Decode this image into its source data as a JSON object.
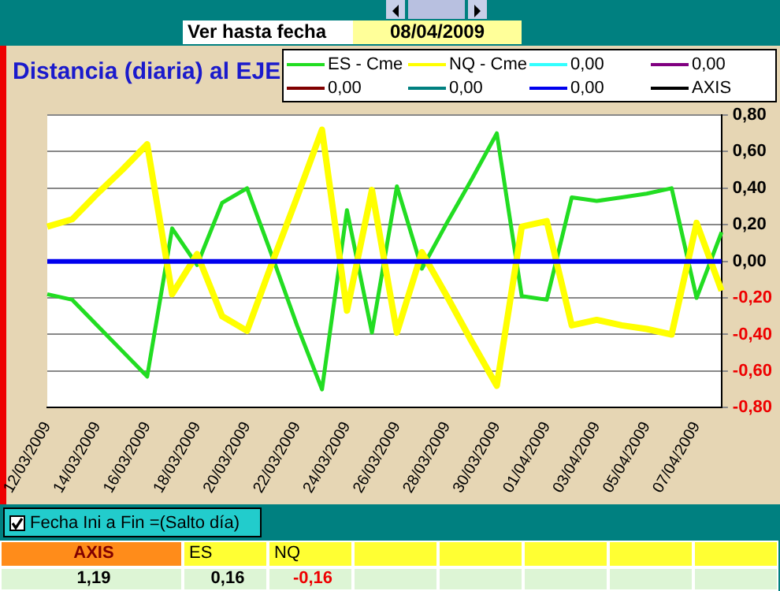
{
  "chart_data": {
    "type": "line",
    "title": "Distancia (diaria) al EJE",
    "categories": [
      "12/03/2009",
      null,
      "14/03/2009",
      null,
      "16/03/2009",
      null,
      "18/03/2009",
      null,
      "20/03/2009",
      null,
      "22/03/2009",
      null,
      "24/03/2009",
      null,
      "26/03/2009",
      null,
      "28/03/2009",
      null,
      "30/03/2009",
      null,
      "01/04/2009",
      null,
      "03/04/2009",
      null,
      "05/04/2009",
      null,
      "07/04/2009",
      null
    ],
    "series": [
      {
        "name": "ES - Cme",
        "color": "#22dd22",
        "values": [
          -0.18,
          -0.21,
          -0.35,
          -0.49,
          -0.63,
          0.18,
          -0.02,
          0.32,
          0.4,
          0.03,
          -0.35,
          -0.7,
          0.28,
          -0.39,
          0.41,
          -0.04,
          0.21,
          0.45,
          0.7,
          -0.19,
          -0.21,
          0.35,
          0.33,
          0.35,
          0.37,
          0.4,
          -0.2,
          0.16
        ]
      },
      {
        "name": "NQ - Cme",
        "color": "#ffff00",
        "values": [
          0.19,
          0.23,
          0.37,
          0.5,
          0.64,
          -0.18,
          0.04,
          -0.3,
          -0.38,
          -0.01,
          0.35,
          0.72,
          -0.27,
          0.39,
          -0.39,
          0.05,
          -0.19,
          -0.44,
          -0.68,
          0.19,
          0.22,
          -0.35,
          -0.32,
          -0.35,
          -0.37,
          -0.4,
          0.21,
          -0.16
        ]
      },
      {
        "name": "0,00",
        "color": "#33ffff",
        "values": [
          null,
          null,
          null,
          null,
          null,
          null,
          null,
          null,
          null,
          null,
          null,
          null,
          null,
          null,
          null,
          null,
          null,
          null,
          null,
          null,
          null,
          null,
          null,
          null,
          null,
          null,
          null,
          null
        ]
      },
      {
        "name": "0,00",
        "color": "#800080",
        "values": [
          null,
          null,
          null,
          null,
          null,
          null,
          null,
          null,
          null,
          null,
          null,
          null,
          null,
          null,
          null,
          null,
          null,
          null,
          null,
          null,
          null,
          null,
          null,
          null,
          null,
          null,
          null,
          null
        ]
      },
      {
        "name": "0,00",
        "color": "#800000",
        "values": [
          null,
          null,
          null,
          null,
          null,
          null,
          null,
          null,
          null,
          null,
          null,
          null,
          null,
          null,
          null,
          null,
          null,
          null,
          null,
          null,
          null,
          null,
          null,
          null,
          null,
          null,
          null,
          null
        ]
      },
      {
        "name": "0,00",
        "color": "#008080",
        "values": [
          null,
          null,
          null,
          null,
          null,
          null,
          null,
          null,
          null,
          null,
          null,
          null,
          null,
          null,
          null,
          null,
          null,
          null,
          null,
          null,
          null,
          null,
          null,
          null,
          null,
          null,
          null,
          null
        ]
      },
      {
        "name": "0,00",
        "color": "#0000ee",
        "values": [
          0,
          0,
          0,
          0,
          0,
          0,
          0,
          0,
          0,
          0,
          0,
          0,
          0,
          0,
          0,
          0,
          0,
          0,
          0,
          0,
          0,
          0,
          0,
          0,
          0,
          0,
          0,
          0
        ]
      },
      {
        "name": "AXIS",
        "color": "#000000",
        "values": [
          null,
          null,
          null,
          null,
          null,
          null,
          null,
          null,
          null,
          null,
          null,
          null,
          null,
          null,
          null,
          null,
          null,
          null,
          null,
          null,
          null,
          null,
          null,
          null,
          null,
          null,
          null,
          null
        ]
      }
    ],
    "ylim": [
      -0.8,
      0.8
    ],
    "yticks": [
      {
        "value": -0.8,
        "label": "-0,80"
      },
      {
        "value": -0.6,
        "label": "-0,60"
      },
      {
        "value": -0.4,
        "label": "-0,40"
      },
      {
        "value": -0.2,
        "label": "-0,20"
      },
      {
        "value": 0,
        "label": "0,00"
      },
      {
        "value": 0.2,
        "label": "0,20"
      },
      {
        "value": 0.4,
        "label": "0,40"
      },
      {
        "value": 0.6,
        "label": "0,60"
      },
      {
        "value": 0.8,
        "label": "0,80"
      }
    ],
    "grid": "y",
    "legend": "top right",
    "line_style": "solid",
    "annotations": [
      "Ver hasta fecha",
      "08/04/2009",
      "Fecha Ini a Fin =(Salto día)",
      "AXIS",
      "ES",
      "NQ",
      "1,19",
      "0,16",
      "-0,16"
    ]
  }
}
